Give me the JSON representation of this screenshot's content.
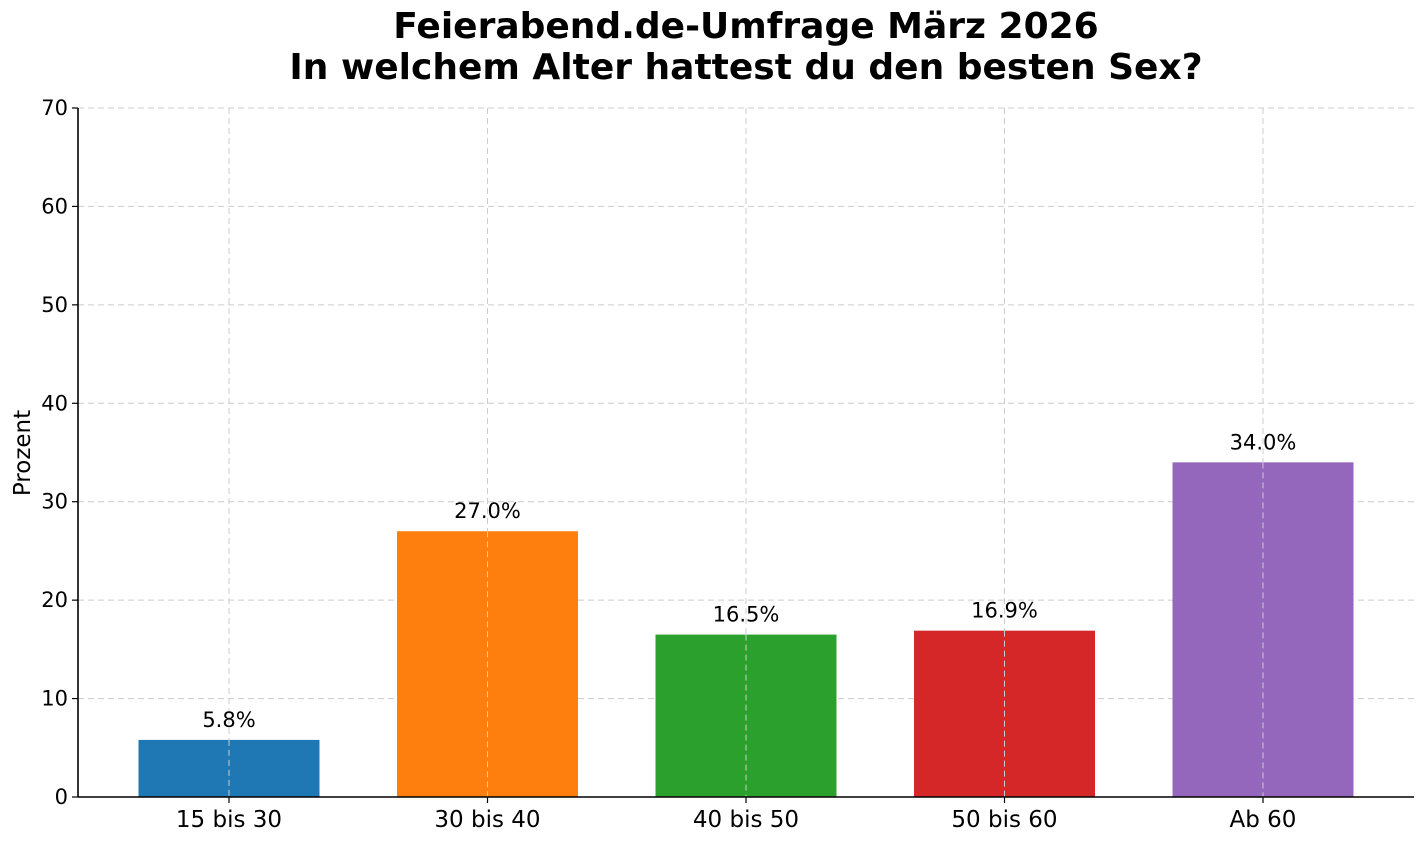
{
  "chart_data": {
    "type": "bar",
    "title_lines": [
      "Feierabend.de-Umfrage März 2026",
      "In welchem Alter hattest du den besten Sex?"
    ],
    "xlabel": "",
    "ylabel": "Prozent",
    "ylim": [
      0,
      70
    ],
    "yticks": [
      0,
      10,
      20,
      30,
      40,
      50,
      60,
      70
    ],
    "categories": [
      "15 bis 30",
      "30 bis 40",
      "40 bis 50",
      "50 bis 60",
      "Ab 60"
    ],
    "values": [
      5.8,
      27.0,
      16.5,
      16.9,
      34.0
    ],
    "value_labels": [
      "5.8%",
      "27.0%",
      "16.5%",
      "16.9%",
      "34.0%"
    ],
    "colors": [
      "#1f77b4",
      "#ff7f0e",
      "#2ca02c",
      "#d62728",
      "#9467bd"
    ],
    "grid": true,
    "legend": "none"
  }
}
